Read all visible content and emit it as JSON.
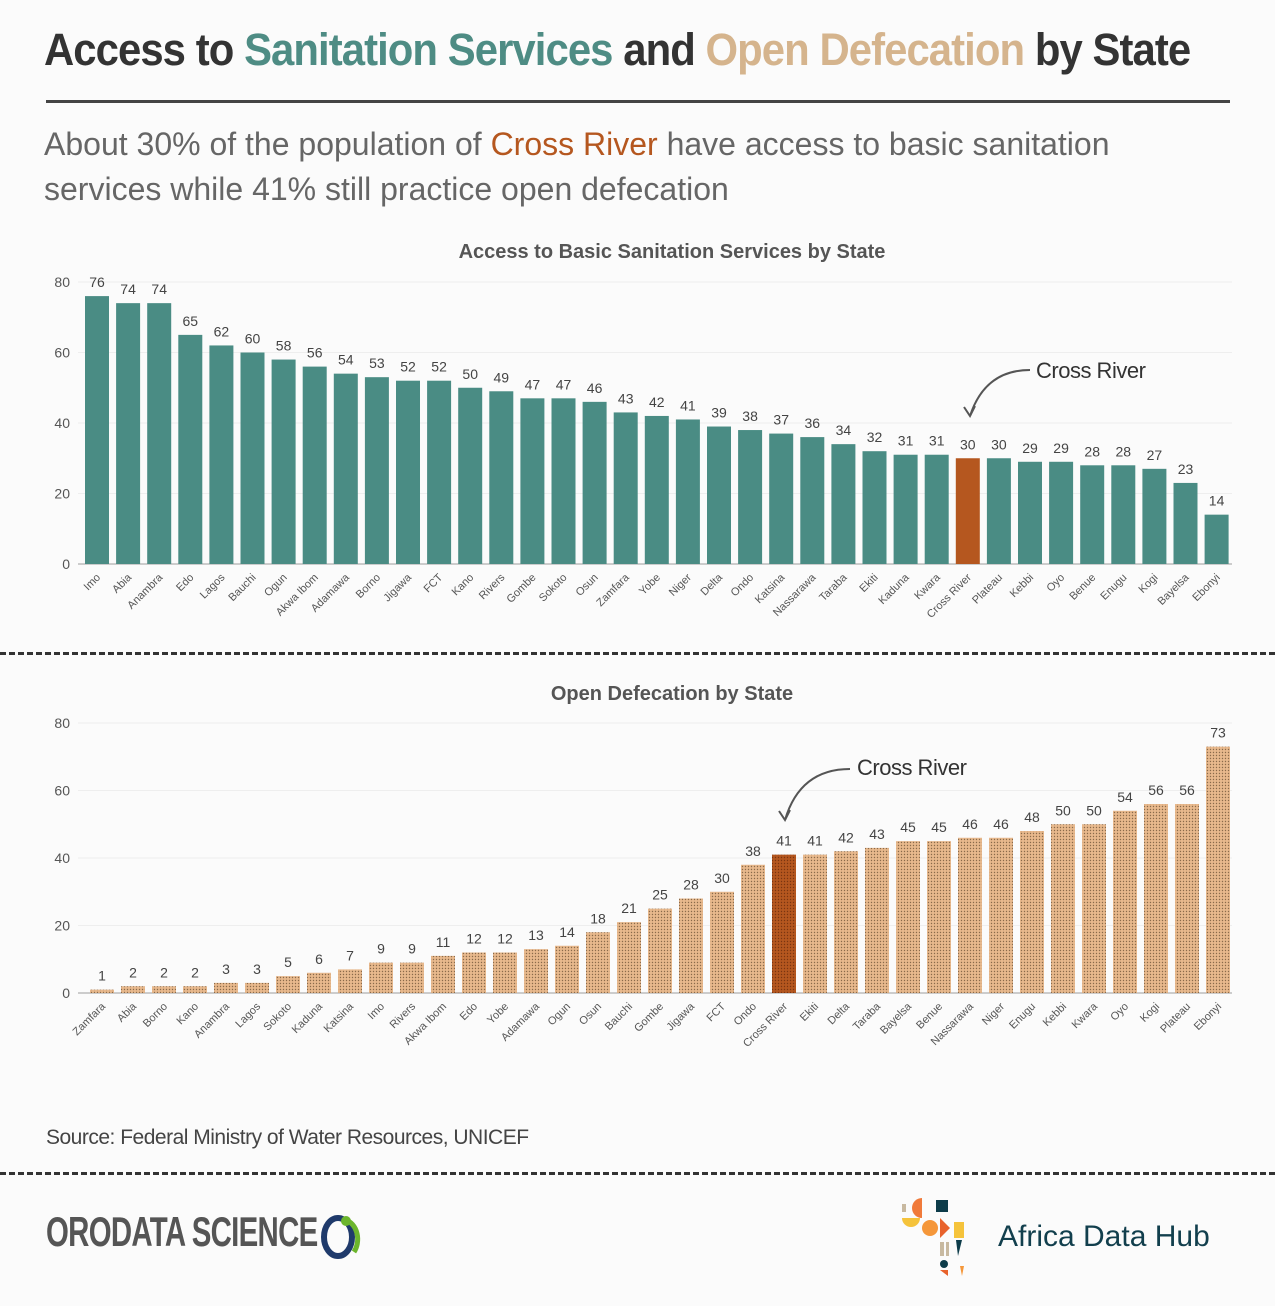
{
  "header": {
    "title_part1": "Access to ",
    "title_part2": "Sanitation Services",
    "title_part3": " and ",
    "title_part4": "Open Defecation",
    "title_part5": " by State",
    "subtitle_part1": "About 30% of the population of ",
    "subtitle_highlight": "Cross River",
    "subtitle_part2": " have access to basic sanitation services while 41% still practice open defecation"
  },
  "colors": {
    "sanitation": "#4a8c84",
    "open_defecation": "#e8b98d",
    "highlight": "#b5571f",
    "title_teal": "#4e8c84",
    "title_tan": "#d5b48d"
  },
  "chart_data": [
    {
      "type": "bar",
      "title": "Access to Basic Sanitation Services by State",
      "ylim": [
        0,
        80
      ],
      "yticks": [
        0,
        20,
        40,
        60,
        80
      ],
      "grid": true,
      "annotation": "Cross River",
      "highlight": "Cross River",
      "categories": [
        "Imo",
        "Abia",
        "Anambra",
        "Edo",
        "Lagos",
        "Bauchi",
        "Ogun",
        "Akwa Ibom",
        "Adamawa",
        "Borno",
        "Jigawa",
        "FCT",
        "Kano",
        "Rivers",
        "Gombe",
        "Sokoto",
        "Osun",
        "Zamfara",
        "Yobe",
        "Niger",
        "Delta",
        "Ondo",
        "Katsina",
        "Nassarawa",
        "Taraba",
        "Ekiti",
        "Kaduna",
        "Kwara",
        "Cross River",
        "Plateau",
        "Kebbi",
        "Oyo",
        "Benue",
        "Enugu",
        "Kogi",
        "Bayelsa",
        "Ebonyi"
      ],
      "values": [
        76,
        74,
        74,
        65,
        62,
        60,
        58,
        56,
        54,
        53,
        52,
        52,
        50,
        49,
        47,
        47,
        46,
        43,
        42,
        41,
        39,
        38,
        37,
        36,
        34,
        32,
        31,
        31,
        30,
        30,
        29,
        29,
        28,
        28,
        27,
        23,
        14
      ]
    },
    {
      "type": "bar",
      "title": "Open Defecation by State",
      "ylim": [
        0,
        80
      ],
      "yticks": [
        0,
        20,
        40,
        60,
        80
      ],
      "grid": true,
      "annotation": "Cross River",
      "highlight": "Cross River",
      "categories": [
        "Zamfara",
        "Abia",
        "Borno",
        "Kano",
        "Anambra",
        "Lagos",
        "Sokoto",
        "Kaduna",
        "Katsina",
        "Imo",
        "Rivers",
        "Akwa Ibom",
        "Edo",
        "Yobe",
        "Adamawa",
        "Ogun",
        "Osun",
        "Bauchi",
        "Gombe",
        "Jigawa",
        "FCT",
        "Ondo",
        "Cross River",
        "Ekiti",
        "Delta",
        "Taraba",
        "Bayelsa",
        "Benue",
        "Nassarawa",
        "Niger",
        "Enugu",
        "Kebbi",
        "Kwara",
        "Oyo",
        "Kogi",
        "Plateau",
        "Ebonyi"
      ],
      "values": [
        1,
        2,
        2,
        2,
        3,
        3,
        5,
        6,
        7,
        9,
        9,
        11,
        12,
        12,
        13,
        14,
        18,
        21,
        25,
        28,
        30,
        38,
        41,
        41,
        42,
        43,
        45,
        45,
        46,
        46,
        48,
        50,
        50,
        54,
        56,
        56,
        73
      ]
    }
  ],
  "footer": {
    "source": "Source: Federal Ministry of Water Resources, UNICEF",
    "logo_left": "ORODATA SCIENCE",
    "logo_right": "Africa Data Hub"
  }
}
